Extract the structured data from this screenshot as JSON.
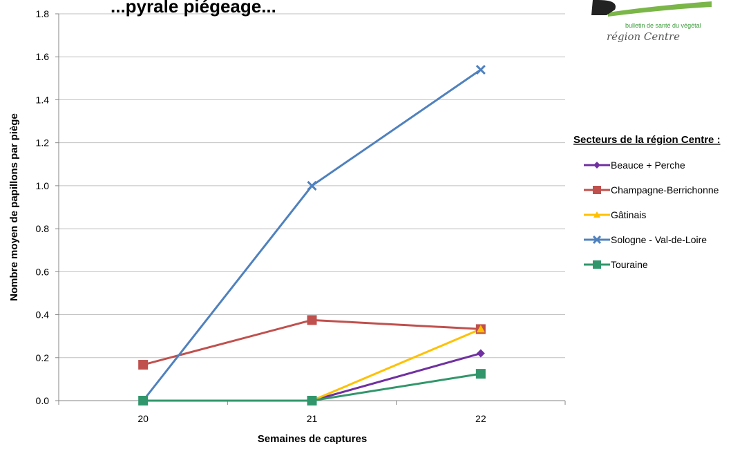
{
  "chart_data": {
    "type": "line",
    "title": "...pyrale piégeage...",
    "xlabel": "Semaines de captures",
    "ylabel": "Nombre moyen de papillons par piège",
    "x": [
      20,
      21,
      22
    ],
    "xlim": [
      19.5,
      22.5
    ],
    "ylim": [
      0,
      1.8
    ],
    "yticks": [
      "0.0",
      "0.2",
      "0.4",
      "0.6",
      "0.8",
      "1.0",
      "1.2",
      "1.4",
      "1.6",
      "1.8"
    ],
    "legend_title": "Secteurs de la région Centre :",
    "legend_position": "right",
    "grid": "horizontal",
    "series": [
      {
        "name": "Beauce + Perche",
        "color": "#7030a0",
        "marker": "diamond",
        "values": [
          0,
          0,
          0.22
        ]
      },
      {
        "name": "Champagne-Berrichonne",
        "color": "#c0504d",
        "marker": "square",
        "values": [
          0.167,
          0.375,
          0.333
        ]
      },
      {
        "name": "Gâtinais",
        "color": "#ffc000",
        "marker": "triangle",
        "values": [
          0,
          0,
          0.333
        ]
      },
      {
        "name": "Sologne - Val-de-Loire",
        "color": "#4f81bd",
        "marker": "x",
        "values": [
          0,
          1.0,
          1.54
        ]
      },
      {
        "name": "Touraine",
        "color": "#31966b",
        "marker": "square",
        "values": [
          0,
          0,
          0.125
        ]
      }
    ]
  },
  "logo": {
    "subtitle": "bulletin de santé du végétal",
    "name": "région Centre"
  }
}
